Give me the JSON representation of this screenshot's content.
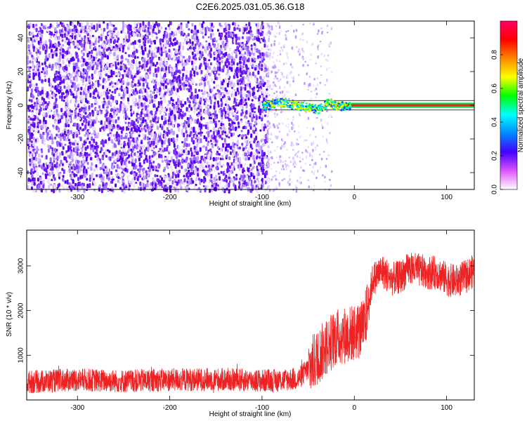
{
  "figure_title": "C2E6.2025.031.05.36.G18",
  "chart_data": [
    {
      "type": "heatmap",
      "title": "",
      "xlabel": "Height of straight line (km)",
      "ylabel": "Frequency (Hz)",
      "xlim": [
        -355,
        130
      ],
      "ylim": [
        -50,
        50
      ],
      "x_ticks": [
        -300,
        -200,
        -100,
        0,
        100
      ],
      "y_ticks": [
        -40,
        -20,
        0,
        20,
        40
      ],
      "colorbar": {
        "label": "Normalized spectral amplitude",
        "range": [
          0,
          1
        ],
        "ticks": [
          0.0,
          0.2,
          0.4,
          0.6,
          0.8
        ],
        "colors": [
          "#ffffff",
          "#dd55ff",
          "#4400ff",
          "#0088ff",
          "#00ffff",
          "#00ff00",
          "#ffff00",
          "#ff8800",
          "#ff0000",
          "#ff0066"
        ]
      },
      "ridge": {
        "description_points_x": [
          -100,
          -80,
          -60,
          -40,
          -30,
          -20,
          0,
          50,
          130
        ],
        "description_points_y": [
          0,
          2,
          0,
          -2,
          2,
          0,
          0,
          0,
          0
        ]
      }
    },
    {
      "type": "line",
      "title": "",
      "xlabel": "Height of straight line (km)",
      "ylabel": "SNR (10 * v/v)",
      "xlim": [
        -355,
        130
      ],
      "ylim": [
        0,
        3800
      ],
      "x_ticks": [
        -300,
        -200,
        -100,
        0,
        100
      ],
      "y_ticks": [
        1000,
        2000,
        3000
      ],
      "series": [
        {
          "color": "#ee2222",
          "x": [
            -355,
            -300,
            -250,
            -200,
            -150,
            -100,
            -80,
            -60,
            -50,
            -40,
            -30,
            -20,
            -10,
            0,
            10,
            20,
            30,
            40,
            50,
            60,
            70,
            80,
            90,
            100,
            110,
            120,
            130
          ],
          "y": [
            400,
            450,
            420,
            450,
            460,
            430,
            440,
            480,
            700,
            950,
            1200,
            1400,
            1450,
            1500,
            1600,
            2700,
            2900,
            2700,
            2750,
            2950,
            2900,
            2850,
            2850,
            2700,
            2650,
            2750,
            2900
          ]
        }
      ]
    }
  ]
}
